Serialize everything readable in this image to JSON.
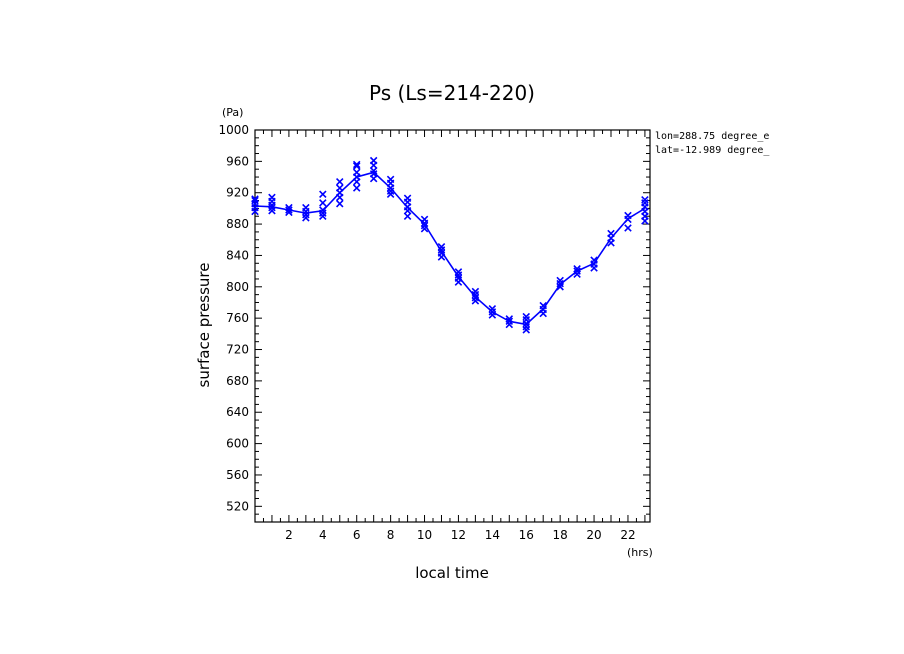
{
  "chart_data": {
    "type": "line",
    "title": "Ps (Ls=214-220)",
    "xlabel": "local time",
    "ylabel": "surface pressure",
    "x_unit": "(hrs)",
    "y_unit": "(Pa)",
    "xlim": [
      0,
      23.3
    ],
    "ylim": [
      500,
      1000
    ],
    "x_ticks": [
      2,
      4,
      6,
      8,
      10,
      12,
      14,
      16,
      18,
      20,
      22
    ],
    "y_ticks": [
      520,
      560,
      600,
      640,
      680,
      720,
      760,
      800,
      840,
      880,
      920,
      960,
      1000
    ],
    "grid": false,
    "annotations": [
      "lon=288.75 degree_e",
      "lat=-12.989 degree_"
    ],
    "colors": {
      "series": "#0000ff",
      "axes": "#000000"
    },
    "series": [
      {
        "kind": "mean-line",
        "x": [
          0,
          1,
          2,
          3,
          4,
          5,
          6,
          7,
          8,
          9,
          10,
          11,
          12,
          13,
          14,
          15,
          16,
          17,
          18,
          19,
          20,
          21,
          22,
          23
        ],
        "y": [
          903,
          902,
          898,
          894,
          897,
          920,
          940,
          946,
          926,
          901,
          880,
          845,
          813,
          787,
          768,
          756,
          752,
          772,
          803,
          820,
          830,
          862,
          887,
          900
        ]
      },
      {
        "kind": "samples",
        "marker": "x",
        "points": [
          [
            0,
            896
          ],
          [
            0,
            901
          ],
          [
            0,
            906
          ],
          [
            0,
            910
          ],
          [
            0,
            912
          ],
          [
            1,
            897
          ],
          [
            1,
            901
          ],
          [
            1,
            904
          ],
          [
            1,
            909
          ],
          [
            1,
            914
          ],
          [
            2,
            895
          ],
          [
            2,
            898
          ],
          [
            2,
            901
          ],
          [
            3,
            888
          ],
          [
            3,
            892
          ],
          [
            3,
            896
          ],
          [
            3,
            901
          ],
          [
            4,
            890
          ],
          [
            4,
            894
          ],
          [
            4,
            898
          ],
          [
            4,
            907
          ],
          [
            4,
            918
          ],
          [
            5,
            906
          ],
          [
            5,
            914
          ],
          [
            5,
            920
          ],
          [
            5,
            926
          ],
          [
            5,
            934
          ],
          [
            6,
            926
          ],
          [
            6,
            934
          ],
          [
            6,
            940
          ],
          [
            6,
            946
          ],
          [
            6,
            954
          ],
          [
            6,
            956
          ],
          [
            7,
            938
          ],
          [
            7,
            944
          ],
          [
            7,
            948
          ],
          [
            7,
            955
          ],
          [
            7,
            961
          ],
          [
            8,
            918
          ],
          [
            8,
            922
          ],
          [
            8,
            926
          ],
          [
            8,
            932
          ],
          [
            8,
            937
          ],
          [
            9,
            890
          ],
          [
            9,
            897
          ],
          [
            9,
            902
          ],
          [
            9,
            908
          ],
          [
            9,
            913
          ],
          [
            10,
            874
          ],
          [
            10,
            878
          ],
          [
            10,
            881
          ],
          [
            10,
            886
          ],
          [
            11,
            838
          ],
          [
            11,
            843
          ],
          [
            11,
            847
          ],
          [
            11,
            851
          ],
          [
            12,
            806
          ],
          [
            12,
            811
          ],
          [
            12,
            815
          ],
          [
            12,
            819
          ],
          [
            13,
            782
          ],
          [
            13,
            786
          ],
          [
            13,
            790
          ],
          [
            13,
            794
          ],
          [
            14,
            764
          ],
          [
            14,
            768
          ],
          [
            14,
            772
          ],
          [
            15,
            752
          ],
          [
            15,
            756
          ],
          [
            15,
            759
          ],
          [
            16,
            745
          ],
          [
            16,
            749
          ],
          [
            16,
            753
          ],
          [
            16,
            758
          ],
          [
            16,
            762
          ],
          [
            17,
            766
          ],
          [
            17,
            771
          ],
          [
            17,
            776
          ],
          [
            18,
            800
          ],
          [
            18,
            804
          ],
          [
            18,
            808
          ],
          [
            19,
            816
          ],
          [
            19,
            820
          ],
          [
            19,
            823
          ],
          [
            20,
            824
          ],
          [
            20,
            829
          ],
          [
            20,
            834
          ],
          [
            21,
            856
          ],
          [
            21,
            862
          ],
          [
            21,
            868
          ],
          [
            22,
            875
          ],
          [
            22,
            886
          ],
          [
            22,
            891
          ],
          [
            23,
            884
          ],
          [
            23,
            890
          ],
          [
            23,
            896
          ],
          [
            23,
            902
          ],
          [
            23,
            907
          ],
          [
            23,
            911
          ]
        ]
      }
    ]
  }
}
